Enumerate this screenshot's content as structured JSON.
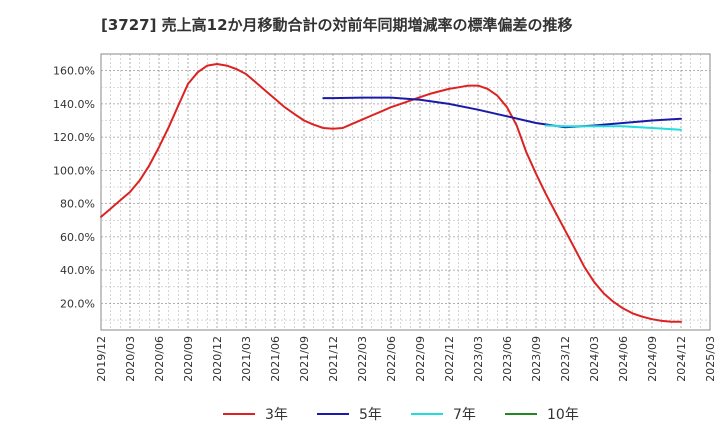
{
  "chart_data": {
    "type": "line",
    "title": "[3727]  売上高12か月移動合計の対前年同期増減率の標準偏差の推移",
    "xlabel": "",
    "ylabel": "",
    "x_ticks": [
      "2019/12",
      "2020/03",
      "2020/06",
      "2020/09",
      "2020/12",
      "2021/03",
      "2021/06",
      "2021/09",
      "2021/12",
      "2022/03",
      "2022/06",
      "2022/09",
      "2022/12",
      "2023/03",
      "2023/06",
      "2023/09",
      "2023/12",
      "2024/03",
      "2024/06",
      "2024/09",
      "2024/12",
      "2025/03"
    ],
    "y_ticks": [
      "20.0%",
      "40.0%",
      "60.0%",
      "80.0%",
      "100.0%",
      "120.0%",
      "140.0%",
      "160.0%"
    ],
    "ylim": [
      4,
      170
    ],
    "grid": true,
    "legend_position": "bottom",
    "series": [
      {
        "name": "3年",
        "color": "#dd2222",
        "points": [
          [
            "2019/12",
            72
          ],
          [
            "2020/01",
            77
          ],
          [
            "2020/02",
            82
          ],
          [
            "2020/03",
            87
          ],
          [
            "2020/04",
            94
          ],
          [
            "2020/05",
            103
          ],
          [
            "2020/06",
            114
          ],
          [
            "2020/07",
            126
          ],
          [
            "2020/08",
            139
          ],
          [
            "2020/09",
            152
          ],
          [
            "2020/10",
            159
          ],
          [
            "2020/11",
            163
          ],
          [
            "2020/12",
            164
          ],
          [
            "2021/01",
            163
          ],
          [
            "2021/02",
            161
          ],
          [
            "2021/03",
            158
          ],
          [
            "2021/04",
            153
          ],
          [
            "2021/05",
            148
          ],
          [
            "2021/06",
            143
          ],
          [
            "2021/07",
            138
          ],
          [
            "2021/08",
            134
          ],
          [
            "2021/09",
            130
          ],
          [
            "2021/10",
            127.5
          ],
          [
            "2021/11",
            125.5
          ],
          [
            "2021/12",
            125
          ],
          [
            "2022/01",
            125.5
          ],
          [
            "2022/02",
            128
          ],
          [
            "2022/03",
            130.5
          ],
          [
            "2022/04",
            133
          ],
          [
            "2022/05",
            135.5
          ],
          [
            "2022/06",
            138
          ],
          [
            "2022/07",
            140
          ],
          [
            "2022/08",
            142
          ],
          [
            "2022/09",
            144
          ],
          [
            "2022/10",
            146
          ],
          [
            "2022/11",
            147.5
          ],
          [
            "2022/12",
            149
          ],
          [
            "2023/01",
            150
          ],
          [
            "2023/02",
            151
          ],
          [
            "2023/03",
            151
          ],
          [
            "2023/04",
            149
          ],
          [
            "2023/05",
            145
          ],
          [
            "2023/06",
            138
          ],
          [
            "2023/07",
            127
          ],
          [
            "2023/08",
            111
          ],
          [
            "2023/09",
            98
          ],
          [
            "2023/10",
            86
          ],
          [
            "2023/11",
            75
          ],
          [
            "2023/12",
            64
          ],
          [
            "2024/01",
            53
          ],
          [
            "2024/02",
            42
          ],
          [
            "2024/03",
            33
          ],
          [
            "2024/04",
            26
          ],
          [
            "2024/05",
            21
          ],
          [
            "2024/06",
            17
          ],
          [
            "2024/07",
            14
          ],
          [
            "2024/08",
            12
          ],
          [
            "2024/09",
            10.5
          ],
          [
            "2024/10",
            9.5
          ],
          [
            "2024/11",
            9
          ],
          [
            "2024/12",
            9
          ]
        ]
      },
      {
        "name": "5年",
        "color": "#1a1aaa",
        "points": [
          [
            "2021/11",
            143.5
          ],
          [
            "2021/12",
            143.5
          ],
          [
            "2022/03",
            143.8
          ],
          [
            "2022/06",
            143.8
          ],
          [
            "2022/09",
            142.5
          ],
          [
            "2022/12",
            140
          ],
          [
            "2023/03",
            136.5
          ],
          [
            "2023/06",
            132.5
          ],
          [
            "2023/09",
            128.5
          ],
          [
            "2023/12",
            126
          ],
          [
            "2024/03",
            127
          ],
          [
            "2024/06",
            128.5
          ],
          [
            "2024/09",
            130
          ],
          [
            "2024/12",
            131
          ]
        ]
      },
      {
        "name": "7年",
        "color": "#22dddd",
        "points": [
          [
            "2023/10",
            127
          ],
          [
            "2023/12",
            126.5
          ],
          [
            "2024/03",
            126.5
          ],
          [
            "2024/06",
            126.5
          ],
          [
            "2024/09",
            125.5
          ],
          [
            "2024/12",
            124.5
          ]
        ]
      },
      {
        "name": "10年",
        "color": "#228822",
        "points": []
      }
    ]
  }
}
